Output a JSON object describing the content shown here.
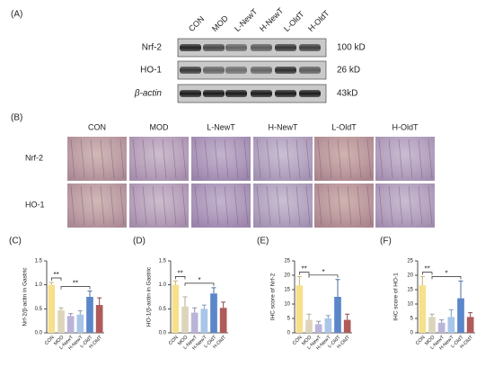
{
  "panel_a": {
    "label": "(A)",
    "columns": [
      "CON",
      "MOD",
      "L-NewT",
      "H-NewT",
      "L-OldT",
      "H-OldT"
    ],
    "rows": [
      {
        "name": "Nrf-2",
        "size": "100 kD"
      },
      {
        "name": "HO-1",
        "size": "26 kD"
      },
      {
        "name": "β-actin",
        "size": "43kD"
      }
    ]
  },
  "panel_b": {
    "label": "(B)",
    "columns": [
      "CON",
      "MOD",
      "L-NewT",
      "H-NewT",
      "L-OldT",
      "H-OldT"
    ],
    "rows": [
      "Nrf-2",
      "HO-1"
    ]
  },
  "chart_data": [
    {
      "type": "bar",
      "panel": "(C)",
      "ylabel": "Nrf-2/β-actin in Gastric",
      "categories": [
        "CON",
        "MOD",
        "L-NewT",
        "H-NewT",
        "L-OldT",
        "H-OldT"
      ],
      "values": [
        1.0,
        0.47,
        0.35,
        0.38,
        0.75,
        0.58
      ],
      "errors": [
        0.05,
        0.05,
        0.05,
        0.08,
        0.12,
        0.15
      ],
      "colors": [
        "#f6e08e",
        "#ddd5bb",
        "#bab4d9",
        "#a9c6e8",
        "#5b87c9",
        "#b05a5a"
      ],
      "ylim": [
        0,
        1.5
      ],
      "yticks": [
        {
          "value": 0,
          "label": "0.0"
        },
        {
          "value": 0.5,
          "label": "0.5"
        },
        {
          "value": 1,
          "label": "1.0"
        },
        {
          "value": 1.5,
          "label": "1.5"
        }
      ],
      "annotations": [
        "**",
        "**"
      ]
    },
    {
      "type": "bar",
      "panel": "(D)",
      "ylabel": "HO-1/β-actin in Gastric",
      "categories": [
        "CON",
        "MOD",
        "L-NewT",
        "H-NewT",
        "L-OldT",
        "H-OldT"
      ],
      "values": [
        1.0,
        0.55,
        0.42,
        0.5,
        0.82,
        0.52
      ],
      "errors": [
        0.08,
        0.2,
        0.1,
        0.08,
        0.12,
        0.12
      ],
      "colors": [
        "#f6e08e",
        "#ddd5bb",
        "#bab4d9",
        "#a9c6e8",
        "#5b87c9",
        "#b05a5a"
      ],
      "ylim": [
        0,
        1.5
      ],
      "yticks": [
        {
          "value": 0,
          "label": "0.0"
        },
        {
          "value": 0.5,
          "label": "0.5"
        },
        {
          "value": 1,
          "label": "1.0"
        },
        {
          "value": 1.5,
          "label": "1.5"
        }
      ],
      "annotations": [
        "**",
        "*"
      ]
    },
    {
      "type": "bar",
      "panel": "(E)",
      "ylabel": "IHC score of Nrf-2",
      "categories": [
        "CON",
        "MOD",
        "L-NewT",
        "H-NewT",
        "L-OldT",
        "H-OldT"
      ],
      "values": [
        16.5,
        4.5,
        3,
        5,
        12.5,
        4.5
      ],
      "errors": [
        3,
        2,
        1,
        1,
        6,
        2
      ],
      "colors": [
        "#f6e08e",
        "#ddd5bb",
        "#bab4d9",
        "#a9c6e8",
        "#5b87c9",
        "#b05a5a"
      ],
      "ylim": [
        0,
        25
      ],
      "yticks": [
        0,
        5,
        10,
        15,
        20,
        25
      ],
      "annotations": [
        "**",
        "*"
      ]
    },
    {
      "type": "bar",
      "panel": "(F)",
      "ylabel": "IHC score of HO-1",
      "categories": [
        "CON",
        "MOD",
        "L-NewT",
        "H-NewT",
        "L-OldT",
        "H-OldT"
      ],
      "values": [
        16.5,
        5.5,
        3.5,
        5.5,
        12,
        5.5
      ],
      "errors": [
        3,
        1,
        1,
        2.5,
        6,
        1.5
      ],
      "colors": [
        "#f6e08e",
        "#ddd5bb",
        "#bab4d9",
        "#a9c6e8",
        "#5b87c9",
        "#b05a5a"
      ],
      "ylim": [
        0,
        25
      ],
      "yticks": [
        0,
        5,
        10,
        15,
        20,
        25
      ],
      "annotations": [
        "**",
        "*"
      ]
    }
  ]
}
